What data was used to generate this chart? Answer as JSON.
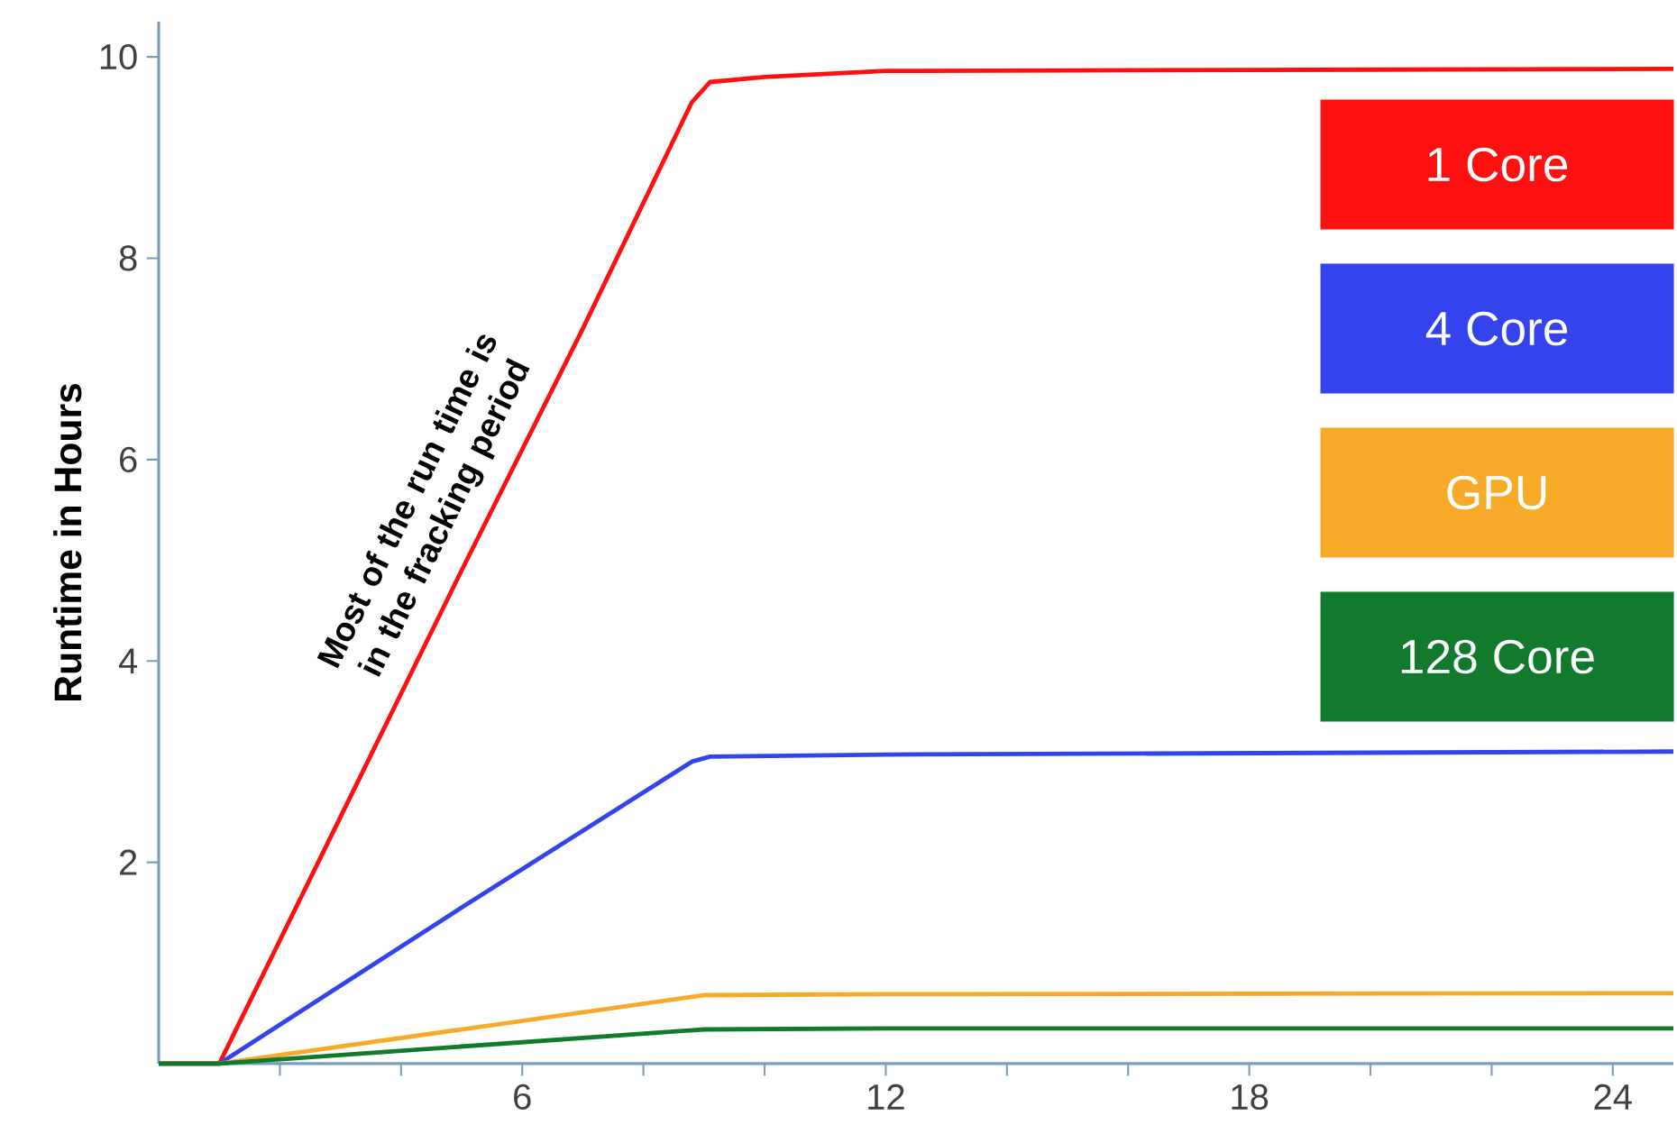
{
  "chart_data": {
    "type": "line",
    "ylabel": "Runtime in Hours",
    "annotations": [
      "Most of the run time is in the fracking period"
    ],
    "xlim": [
      0,
      25
    ],
    "ylim": [
      0,
      10.35
    ],
    "xticks": [
      {
        "value": 2,
        "label": null
      },
      {
        "value": 4,
        "label": null
      },
      6,
      {
        "value": 8,
        "label": null
      },
      {
        "value": 10,
        "label": null
      },
      12,
      {
        "value": 14,
        "label": null
      },
      {
        "value": 16,
        "label": null
      },
      18,
      {
        "value": 20,
        "label": null
      },
      {
        "value": 22,
        "label": null
      },
      24
    ],
    "yticks": [
      2,
      4,
      6,
      8,
      10
    ],
    "legend": "top right",
    "series": [
      {
        "name": "1 Core",
        "color": "#ff1010",
        "x": [
          0,
          1,
          3,
          5,
          7,
          8.8,
          9.1,
          10,
          12,
          18,
          25
        ],
        "values": [
          0,
          0,
          2.45,
          4.9,
          7.3,
          9.55,
          9.75,
          9.8,
          9.86,
          9.87,
          9.88
        ]
      },
      {
        "name": "4 Core",
        "color": "#3344ee",
        "x": [
          0,
          1,
          5,
          8.8,
          9.1,
          12,
          25
        ],
        "values": [
          0,
          0,
          1.55,
          3.0,
          3.05,
          3.07,
          3.1
        ]
      },
      {
        "name": "GPU",
        "color": "#f7a928",
        "x": [
          0,
          1,
          9,
          12,
          25
        ],
        "values": [
          0,
          0,
          0.68,
          0.69,
          0.7
        ]
      },
      {
        "name": "128 Core",
        "color": "#117a2c",
        "x": [
          0,
          1,
          9,
          12,
          25
        ],
        "values": [
          0,
          0,
          0.34,
          0.35,
          0.35
        ]
      }
    ]
  }
}
